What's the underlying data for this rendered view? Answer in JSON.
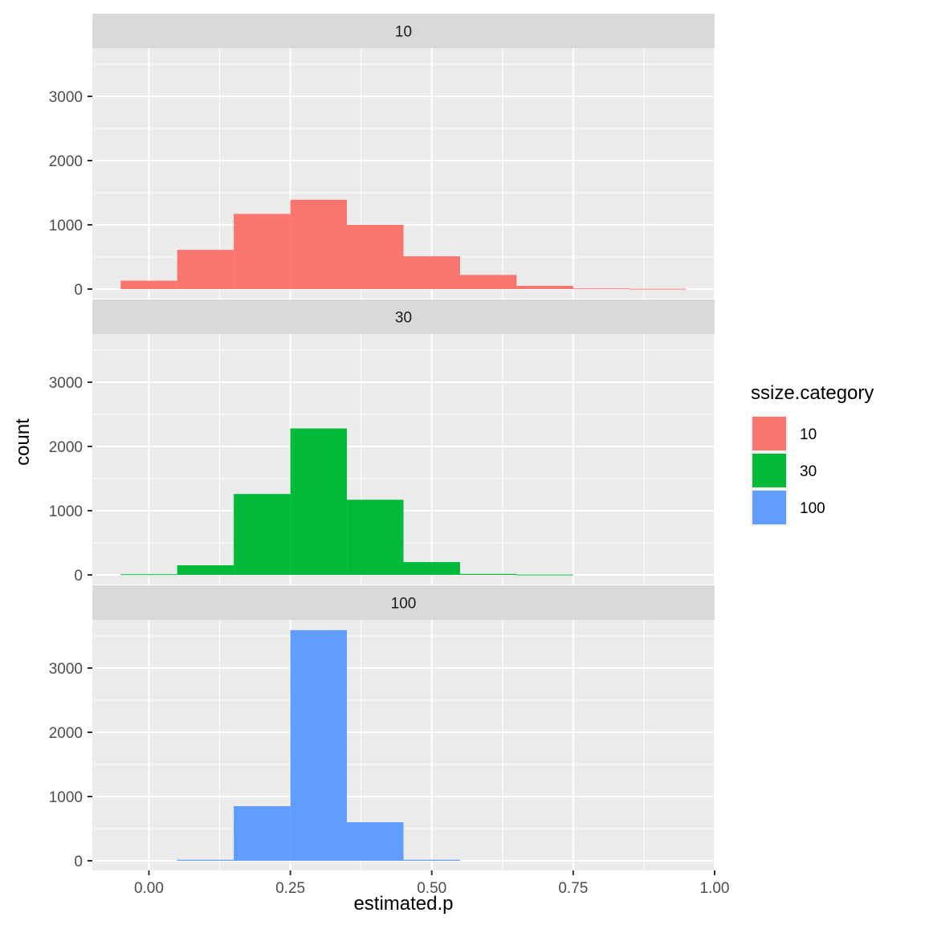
{
  "chart_data": {
    "type": "bar",
    "subtype": "faceted-histogram",
    "xlabel": "estimated.p",
    "ylabel": "count",
    "xlim": [
      -0.1,
      1.0
    ],
    "ylim": [
      -150,
      3750
    ],
    "x_ticks": [
      0.0,
      0.25,
      0.5,
      0.75,
      1.0
    ],
    "x_tick_labels": [
      "0.00",
      "0.25",
      "0.50",
      "0.75",
      "1.00"
    ],
    "y_ticks": [
      0,
      1000,
      2000,
      3000
    ],
    "y_tick_labels": [
      "0",
      "1000",
      "2000",
      "3000"
    ],
    "grid": true,
    "bin_width": 0.1,
    "bin_edges": [
      -0.05,
      0.05,
      0.15,
      0.25,
      0.35,
      0.45,
      0.55,
      0.65,
      0.75,
      0.85,
      0.95
    ],
    "legend": {
      "title": "ssize.category",
      "position": "right",
      "entries": [
        {
          "label": "10",
          "color": "#F8766D"
        },
        {
          "label": "30",
          "color": "#00BA38"
        },
        {
          "label": "100",
          "color": "#619CFF"
        }
      ]
    },
    "series": [
      {
        "name": "10",
        "color": "#F8766D",
        "values": [
          130,
          610,
          1170,
          1390,
          1000,
          510,
          220,
          50,
          10,
          5
        ]
      },
      {
        "name": "30",
        "color": "#00BA38",
        "values": [
          10,
          150,
          1260,
          2280,
          1170,
          200,
          15,
          5,
          0,
          0
        ]
      },
      {
        "name": "100",
        "color": "#619CFF",
        "values": [
          0,
          15,
          850,
          3590,
          600,
          15,
          0,
          0,
          0,
          0
        ]
      }
    ]
  }
}
